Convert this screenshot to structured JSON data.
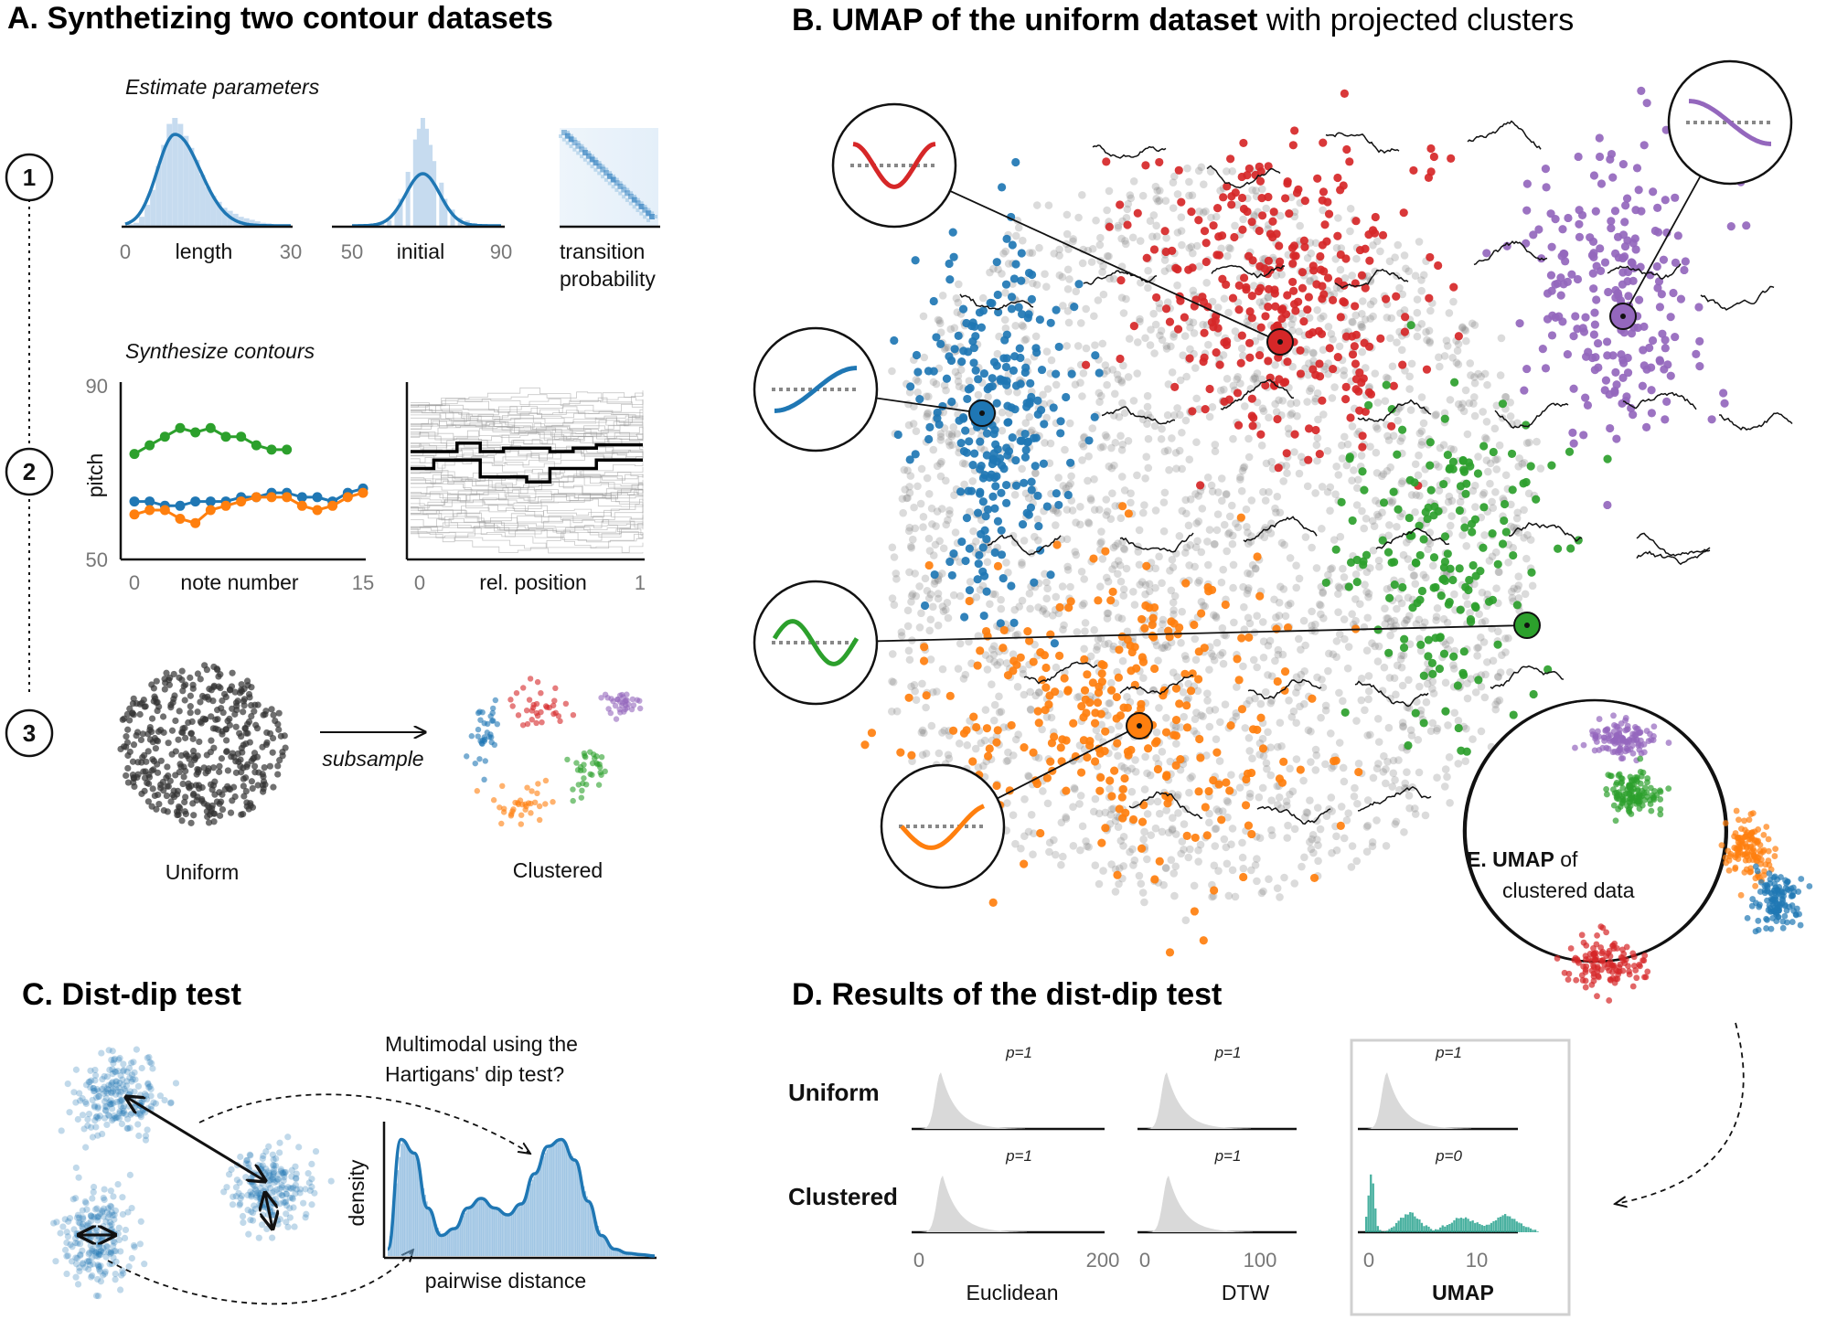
{
  "panels": {
    "a": {
      "title": "A. Synthetizing two contour datasets",
      "estimate_label": "Estimate parameters",
      "synthesize_label": "Synthesize contours",
      "steps": [
        "1",
        "2",
        "3"
      ],
      "length_label": "length",
      "length_ticks": [
        "0",
        "30"
      ],
      "initial_label": "initial",
      "initial_ticks": [
        "50",
        "90"
      ],
      "transition_label_1": "transition",
      "transition_label_2": "probability",
      "pitch_label": "pitch",
      "pitch_ticks": [
        "90",
        "50"
      ],
      "note_number_label": "note number",
      "note_ticks": [
        "0",
        "15"
      ],
      "rel_position_label": "rel. position",
      "rel_ticks": [
        "0",
        "1"
      ],
      "subsample_label": "subsample",
      "uniform_label": "Uniform",
      "clustered_label": "Clustered"
    },
    "b": {
      "title_bold": "B. UMAP of the uniform dataset",
      "title_rest": " with projected clusters"
    },
    "c": {
      "title": "C. Dist-dip test",
      "question_1": "Multimodal using the",
      "question_2": "Hartigans' dip test?",
      "density_label": "density",
      "pairwise_label": "pairwise distance"
    },
    "d": {
      "title": "D. Results of the dist-dip test",
      "row_labels": [
        "Uniform",
        "Clustered"
      ],
      "col_labels": [
        "Euclidean",
        "DTW",
        "UMAP"
      ],
      "euclid_ticks": [
        "0",
        "200"
      ],
      "dtw_ticks": [
        "0",
        "100"
      ],
      "umap_ticks": [
        "0",
        "10"
      ]
    },
    "e": {
      "title_bold": "E. UMAP",
      "title_rest": " of",
      "title_line2": "clustered data"
    }
  },
  "chart_data": [
    {
      "type": "bar",
      "panel": "A-length",
      "xlabel": "length",
      "xlim": [
        0,
        30
      ],
      "histogram_x": [
        1,
        2,
        3,
        4,
        5,
        6,
        7,
        8,
        9,
        10,
        11,
        12,
        13,
        14,
        15,
        16,
        17,
        18,
        19,
        20,
        21,
        22,
        23,
        24,
        25,
        26,
        27,
        28
      ],
      "histogram_density": [
        0.005,
        0.01,
        0.03,
        0.07,
        0.12,
        0.2,
        0.27,
        0.34,
        0.36,
        0.34,
        0.3,
        0.26,
        0.22,
        0.17,
        0.13,
        0.1,
        0.08,
        0.06,
        0.05,
        0.04,
        0.03,
        0.025,
        0.02,
        0.015,
        0.01,
        0.008,
        0.005,
        0.003
      ],
      "fit_peak": 9
    },
    {
      "type": "bar",
      "panel": "A-initial",
      "xlabel": "initial",
      "xlim": [
        50,
        90
      ],
      "histogram_x": [
        58,
        60,
        62,
        63,
        65,
        67,
        68,
        69,
        70,
        71,
        72,
        74,
        75,
        77,
        79,
        81,
        83
      ],
      "histogram_density": [
        0.01,
        0.02,
        0.06,
        0.1,
        0.2,
        0.32,
        0.36,
        0.4,
        0.36,
        0.3,
        0.24,
        0.16,
        0.1,
        0.06,
        0.03,
        0.02,
        0.01
      ],
      "fit_peak": 69
    },
    {
      "type": "line",
      "panel": "A-note-contours",
      "ylabel": "pitch",
      "xlabel": "note number",
      "xlim": [
        0,
        15
      ],
      "ylim": [
        50,
        90
      ],
      "series": [
        {
          "color": "#2ca02c",
          "x": [
            0,
            1,
            2,
            3,
            4,
            5,
            6,
            7,
            8,
            9,
            10
          ],
          "y": [
            74,
            76,
            78,
            80,
            79,
            80,
            78,
            78,
            76,
            75,
            75
          ]
        },
        {
          "color": "#1f77b4",
          "x": [
            0,
            1,
            2,
            3,
            4,
            5,
            6,
            7,
            8,
            9,
            10,
            11,
            12,
            13,
            14,
            15
          ],
          "y": [
            63,
            63,
            62,
            62,
            63,
            63,
            63,
            64,
            64,
            65,
            65,
            64,
            64,
            63,
            65,
            66
          ]
        },
        {
          "color": "#ff7f0e",
          "x": [
            0,
            1,
            2,
            3,
            4,
            5,
            6,
            7,
            8,
            9,
            10,
            11,
            12,
            13,
            14,
            15
          ],
          "y": [
            60,
            61,
            61,
            59,
            58,
            61,
            62,
            63,
            64,
            64,
            64,
            62,
            61,
            62,
            64,
            65
          ]
        }
      ]
    },
    {
      "type": "line",
      "panel": "A-rel-contours",
      "xlabel": "rel. position",
      "xlim": [
        0,
        1
      ],
      "series": [
        {
          "color": "#000000",
          "x": [
            0,
            0.1,
            0.2,
            0.3,
            0.4,
            0.5,
            0.6,
            0.7,
            0.8,
            0.9,
            1.0
          ],
          "y": [
            0.6,
            0.6,
            0.6,
            0.65,
            0.6,
            0.62,
            0.62,
            0.6,
            0.62,
            0.64,
            0.64
          ]
        },
        {
          "color": "#000000",
          "x": [
            0,
            0.1,
            0.2,
            0.3,
            0.4,
            0.5,
            0.6,
            0.7,
            0.8,
            0.9,
            1.0
          ],
          "y": [
            0.5,
            0.5,
            0.55,
            0.55,
            0.45,
            0.45,
            0.42,
            0.5,
            0.5,
            0.55,
            0.55
          ]
        }
      ]
    },
    {
      "type": "area",
      "panel": "C-pairwise",
      "xlabel": "pairwise distance",
      "ylabel": "density",
      "x": [
        0,
        0.05,
        0.1,
        0.15,
        0.2,
        0.25,
        0.3,
        0.35,
        0.4,
        0.45,
        0.5,
        0.55,
        0.6,
        0.65,
        0.7,
        0.75,
        0.8,
        0.85,
        0.9,
        0.95,
        1.0
      ],
      "density": [
        0.05,
        0.85,
        0.75,
        0.35,
        0.15,
        0.2,
        0.35,
        0.42,
        0.35,
        0.3,
        0.38,
        0.6,
        0.8,
        0.85,
        0.7,
        0.4,
        0.15,
        0.05,
        0.02,
        0.01,
        0.0
      ]
    },
    {
      "type": "area",
      "panel": "D-results",
      "rows": [
        "Uniform",
        "Clustered"
      ],
      "cols": [
        "Euclidean",
        "DTW",
        "UMAP"
      ],
      "p_values": [
        [
          "p=1",
          "p=1",
          "p=1"
        ],
        [
          "p=1",
          "p=1",
          "p=0"
        ]
      ]
    }
  ]
}
